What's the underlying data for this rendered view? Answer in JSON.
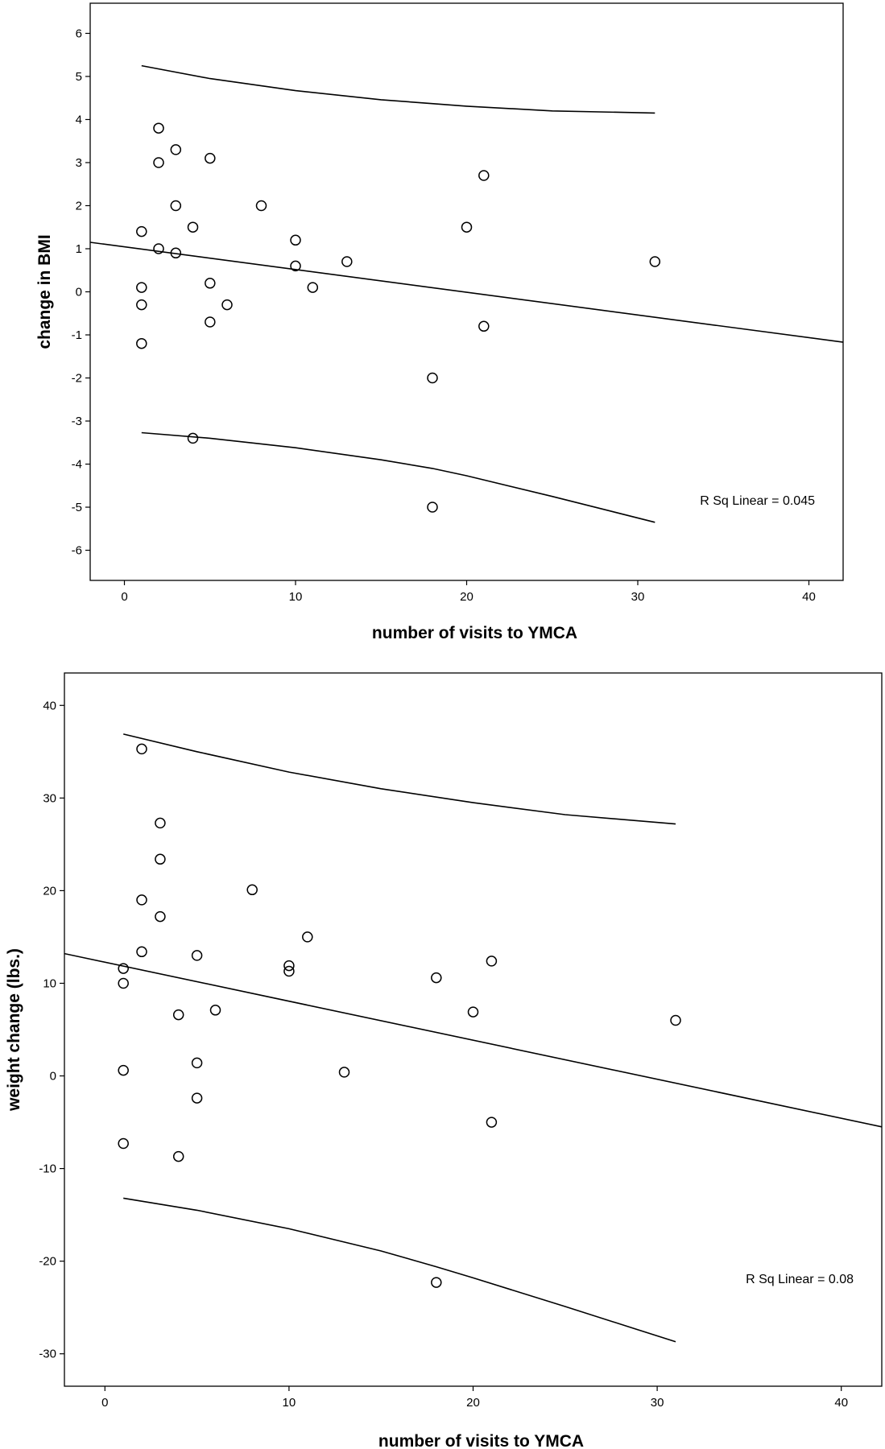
{
  "chart_data": [
    {
      "type": "scatter",
      "xlabel": "number of visits to YMCA",
      "ylabel": "change in BMI",
      "xlim": [
        -2,
        42
      ],
      "ylim": [
        -6.7,
        6.7
      ],
      "xticks": [
        0,
        10,
        20,
        30,
        40
      ],
      "yticks": [
        -6,
        -5,
        -4,
        -3,
        -2,
        -1,
        0,
        1,
        2,
        3,
        4,
        5,
        6
      ],
      "annotation": "R Sq Linear = 0.045",
      "points": [
        [
          2,
          3.8
        ],
        [
          3,
          3.3
        ],
        [
          2,
          3.0
        ],
        [
          5,
          3.1
        ],
        [
          3,
          2.0
        ],
        [
          8,
          2.0
        ],
        [
          21,
          2.7
        ],
        [
          4,
          1.5
        ],
        [
          20,
          1.5
        ],
        [
          1,
          1.4
        ],
        [
          10,
          1.2
        ],
        [
          2,
          1.0
        ],
        [
          3,
          0.9
        ],
        [
          13,
          0.7
        ],
        [
          31,
          0.7
        ],
        [
          10,
          0.6
        ],
        [
          5,
          0.2
        ],
        [
          1,
          0.1
        ],
        [
          11,
          0.1
        ],
        [
          1,
          -0.3
        ],
        [
          6,
          -0.3
        ],
        [
          5,
          -0.7
        ],
        [
          21,
          -0.8
        ],
        [
          1,
          -1.2
        ],
        [
          18,
          -2.0
        ],
        [
          4,
          -3.4
        ],
        [
          18,
          -5.0
        ]
      ],
      "fit_line": {
        "x": [
          -2,
          42
        ],
        "y": [
          1.15,
          -1.17
        ]
      },
      "upper_band": {
        "x": [
          1,
          5,
          10,
          15,
          20,
          25,
          31
        ],
        "y": [
          5.25,
          4.95,
          4.67,
          4.46,
          4.31,
          4.2,
          4.15
        ]
      },
      "lower_band": {
        "x": [
          1,
          5,
          10,
          15,
          18,
          20,
          25,
          31
        ],
        "y": [
          -3.27,
          -3.4,
          -3.62,
          -3.9,
          -4.1,
          -4.27,
          -4.75,
          -5.35
        ]
      }
    },
    {
      "type": "scatter",
      "xlabel": "number of visits to YMCA",
      "ylabel": "weight change (lbs.)",
      "xlim": [
        -2.2,
        42.2
      ],
      "ylim": [
        -33.5,
        43.5
      ],
      "xticks": [
        0,
        10,
        20,
        30,
        40
      ],
      "yticks": [
        -30,
        -20,
        -10,
        0,
        10,
        20,
        30,
        40
      ],
      "annotation": "R Sq Linear = 0.08",
      "points": [
        [
          2,
          35.3
        ],
        [
          3,
          27.3
        ],
        [
          3,
          23.4
        ],
        [
          8,
          20.1
        ],
        [
          2,
          19.0
        ],
        [
          3,
          17.2
        ],
        [
          11,
          15.0
        ],
        [
          2,
          13.4
        ],
        [
          5,
          13.0
        ],
        [
          21,
          12.4
        ],
        [
          10,
          11.9
        ],
        [
          1,
          11.6
        ],
        [
          10,
          11.3
        ],
        [
          18,
          10.6
        ],
        [
          1,
          10.0
        ],
        [
          6,
          7.1
        ],
        [
          20,
          6.9
        ],
        [
          4,
          6.6
        ],
        [
          31,
          6.0
        ],
        [
          5,
          1.4
        ],
        [
          1,
          0.6
        ],
        [
          13,
          0.4
        ],
        [
          5,
          -2.4
        ],
        [
          21,
          -5.0
        ],
        [
          1,
          -7.3
        ],
        [
          4,
          -8.7
        ],
        [
          18,
          -22.3
        ]
      ],
      "fit_line": {
        "x": [
          -2.2,
          42.2
        ],
        "y": [
          13.2,
          -5.5
        ]
      },
      "upper_band": {
        "x": [
          1,
          5,
          10,
          15,
          20,
          25,
          31
        ],
        "y": [
          36.9,
          35.0,
          32.8,
          31.0,
          29.5,
          28.2,
          27.2
        ]
      },
      "lower_band": {
        "x": [
          1,
          5,
          10,
          15,
          18,
          20,
          25,
          31
        ],
        "y": [
          -13.2,
          -14.5,
          -16.5,
          -18.9,
          -20.6,
          -21.8,
          -24.9,
          -28.7
        ]
      }
    }
  ]
}
